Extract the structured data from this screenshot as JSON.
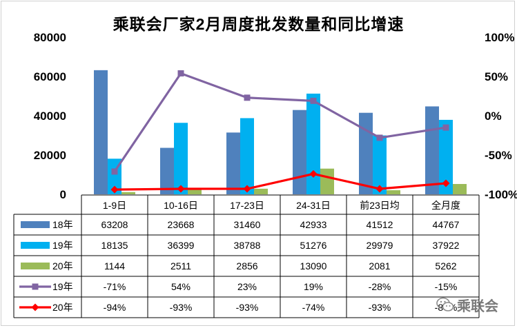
{
  "chart_data": {
    "type": "bar",
    "title": "乘联会厂家2月周度批发数量和同比增速",
    "categories": [
      "1-9日",
      "10-16日",
      "17-23日",
      "24-31日",
      "前23日均",
      "全月度"
    ],
    "ylim": [
      0,
      80000
    ],
    "yticks": [
      "0",
      "20000",
      "40000",
      "60000",
      "80000"
    ],
    "y2lim": [
      -100,
      100
    ],
    "y2ticks": [
      "-100%",
      "-50%",
      "0%",
      "50%",
      "100%"
    ],
    "series": [
      {
        "name": "18年",
        "kind": "bar",
        "color": "#4f81bd",
        "values": [
          63208,
          23668,
          31460,
          42933,
          41512,
          44767
        ],
        "labels": [
          "63208",
          "23668",
          "31460",
          "42933",
          "41512",
          "44767"
        ]
      },
      {
        "name": "19年",
        "kind": "bar",
        "color": "#00b0f0",
        "values": [
          18135,
          36399,
          38788,
          51276,
          29979,
          37922
        ],
        "labels": [
          "18135",
          "36399",
          "38788",
          "51276",
          "29979",
          "37922"
        ]
      },
      {
        "name": "20年",
        "kind": "bar",
        "color": "#9bbb59",
        "values": [
          1144,
          2511,
          2856,
          13090,
          2081,
          5262
        ],
        "labels": [
          "1144",
          "2511",
          "2856",
          "13090",
          "2081",
          "5262"
        ]
      },
      {
        "name": "19年",
        "kind": "line",
        "axis": "right",
        "color": "#8064a2",
        "marker": "square",
        "values": [
          -71,
          54,
          23,
          19,
          -28,
          -15
        ],
        "labels": [
          "-71%",
          "54%",
          "23%",
          "19%",
          "-28%",
          "-15%"
        ]
      },
      {
        "name": "20年",
        "kind": "line",
        "axis": "right",
        "color": "#ff0000",
        "marker": "diamond",
        "values": [
          -94,
          -93,
          -93,
          -74,
          -93,
          -86
        ],
        "labels": [
          "-94%",
          "-93%",
          "-93%",
          "-74%",
          "-93%",
          "-86%"
        ]
      }
    ],
    "data_table": true,
    "grid": false
  },
  "watermark": {
    "text": "乘联会",
    "icon": "wechat-icon"
  }
}
